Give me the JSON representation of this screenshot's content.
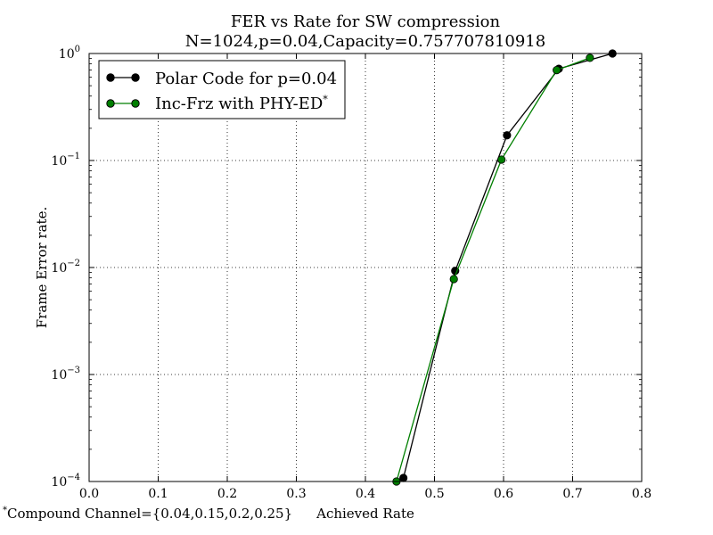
{
  "chart_data": {
    "type": "line",
    "title": "FER vs Rate for SW compression",
    "subtitle": "N=1024,p=0.04,Capacity=0.757707810918",
    "xlabel": "Achieved Rate",
    "ylabel": "Frame Error rate.",
    "footnote": "*Compound Channel={0.04,0.15,0.2,0.25}",
    "xlim": [
      0.0,
      0.8
    ],
    "ylim": [
      0.0001,
      1
    ],
    "yscale": "log",
    "grid": true,
    "legend_position": "top-left",
    "x_ticks": [
      "0.0",
      "0.1",
      "0.2",
      "0.3",
      "0.4",
      "0.5",
      "0.6",
      "0.7",
      "0.8"
    ],
    "y_ticks": [
      {
        "base": "10",
        "exp": "0"
      },
      {
        "base": "10",
        "exp": "−1"
      },
      {
        "base": "10",
        "exp": "−2"
      },
      {
        "base": "10",
        "exp": "−3"
      },
      {
        "base": "10",
        "exp": "−4"
      }
    ],
    "series": [
      {
        "name": "Polar Code for p=0.04",
        "color": "#000000",
        "points": [
          {
            "x": 0.455,
            "y": 0.000108
          },
          {
            "x": 0.53,
            "y": 0.0093
          },
          {
            "x": 0.605,
            "y": 0.172
          },
          {
            "x": 0.68,
            "y": 0.72
          },
          {
            "x": 0.7577,
            "y": 1.0
          }
        ]
      },
      {
        "name": "Inc-Frz with PHY-ED",
        "name_marker": "*",
        "color": "#007f00",
        "points": [
          {
            "x": 0.445,
            "y": 0.0001
          },
          {
            "x": 0.528,
            "y": 0.0078
          },
          {
            "x": 0.597,
            "y": 0.102
          },
          {
            "x": 0.677,
            "y": 0.7
          },
          {
            "x": 0.725,
            "y": 0.91
          }
        ]
      }
    ]
  }
}
